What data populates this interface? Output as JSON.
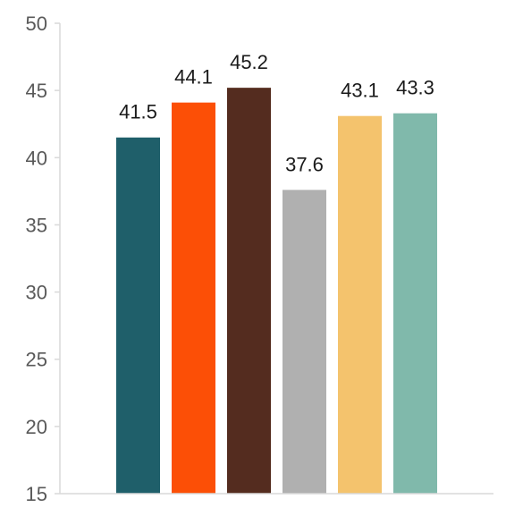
{
  "chart_data": {
    "type": "bar",
    "title": "",
    "xlabel": "",
    "ylabel": "",
    "ylim": [
      15,
      50
    ],
    "yticks": [
      15,
      20,
      25,
      30,
      35,
      40,
      45,
      50
    ],
    "grid": false,
    "legend": "none",
    "values": [
      41.5,
      44.1,
      45.2,
      37.6,
      43.1,
      43.3
    ],
    "value_labels": [
      "41.5",
      "44.1",
      "45.2",
      "37.6",
      "43.1",
      "43.3"
    ],
    "colors": [
      "#1f5f6a",
      "#fc4f06",
      "#542c1f",
      "#b0b0b0",
      "#f4c36d",
      "#80b9ab"
    ]
  }
}
